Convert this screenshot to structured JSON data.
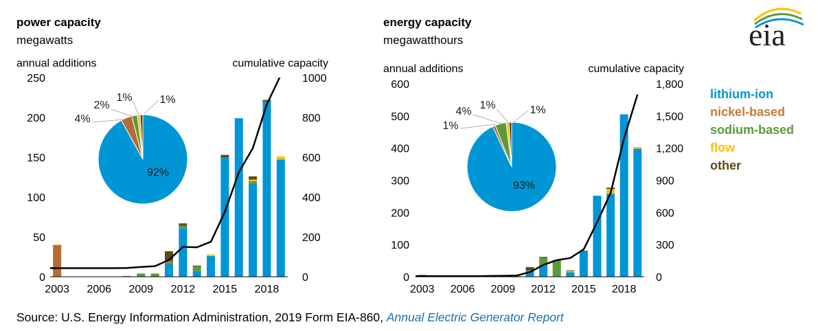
{
  "colors": {
    "lithium-ion": "#0096d6",
    "nickel-based": "#b86b31",
    "sodium-based": "#5b9a3b",
    "flow": "#ffc000",
    "other": "#5e4a16",
    "line": "#000000"
  },
  "legend": [
    {
      "name": "lithium-ion",
      "color": "#0096d6"
    },
    {
      "name": "nickel-based",
      "color": "#c7783a"
    },
    {
      "name": "sodium-based",
      "color": "#5b9a3b"
    },
    {
      "name": "flow",
      "color": "#ffc000"
    },
    {
      "name": "other",
      "color": "#5e4a16"
    }
  ],
  "logo": {
    "text": "eia"
  },
  "source": {
    "prefix": "Source: U.S. Energy Information Administration, 2019 Form EIA-860, ",
    "link": "Annual Electric Generator Report"
  },
  "chart_data": [
    {
      "type": "bar",
      "title": "power capacity",
      "subtitle": "megawatts",
      "ylabel_left": "annual additions",
      "ylabel_right": "cumulative capacity",
      "ylim_left": [
        0,
        250
      ],
      "ylim_right": [
        0,
        1000
      ],
      "yticks_left": [
        "0",
        "50",
        "100",
        "150",
        "200",
        "250"
      ],
      "yticks_right": [
        "0",
        "200",
        "400",
        "600",
        "800",
        "1000"
      ],
      "x": [
        2003,
        2004,
        2005,
        2006,
        2007,
        2008,
        2009,
        2010,
        2011,
        2012,
        2013,
        2014,
        2015,
        2016,
        2017,
        2018,
        2019
      ],
      "xticks": [
        "2003",
        "2006",
        "2009",
        "2012",
        "2015",
        "2018"
      ],
      "stacked": true,
      "series": [
        {
          "name": "lithium-ion",
          "values": [
            0,
            0,
            0,
            0,
            0,
            0,
            0,
            0,
            16,
            61,
            7,
            26,
            150,
            199,
            117,
            220,
            147
          ]
        },
        {
          "name": "nickel-based",
          "values": [
            40,
            0,
            0,
            0,
            0,
            0,
            0,
            0,
            2,
            0,
            0,
            0,
            0,
            0,
            0,
            0,
            0
          ]
        },
        {
          "name": "sodium-based",
          "values": [
            0,
            0,
            0,
            0,
            0,
            1,
            4,
            4,
            2,
            3,
            6,
            0,
            0,
            0,
            3,
            0,
            0
          ]
        },
        {
          "name": "flow",
          "values": [
            0,
            0,
            0,
            0,
            0,
            0,
            0,
            0,
            0,
            0,
            0,
            2,
            0,
            0,
            2,
            0,
            4
          ]
        },
        {
          "name": "other",
          "values": [
            0,
            0,
            0,
            0,
            0,
            0,
            0,
            0,
            12,
            3,
            1,
            0,
            3,
            0,
            4,
            2,
            0
          ]
        }
      ],
      "line": {
        "axis": "right",
        "values": [
          43,
          43,
          43,
          43,
          43,
          44,
          49,
          53,
          85,
          150,
          148,
          176,
          326,
          525,
          646,
          866,
          1012
        ]
      },
      "pie": {
        "segments": [
          {
            "name": "lithium-ion",
            "value": 92
          },
          {
            "name": "nickel-based",
            "value": 4
          },
          {
            "name": "sodium-based",
            "value": 2
          },
          {
            "name": "flow",
            "value": 1
          },
          {
            "name": "other",
            "value": 1
          }
        ],
        "labels": [
          "92%",
          "4%",
          "2%",
          "1%",
          "1%"
        ]
      }
    },
    {
      "type": "bar",
      "title": "energy capacity",
      "subtitle": "megawatthours",
      "ylabel_left": "annual additions",
      "ylabel_right": "cumulative capacity",
      "ylim_left": [
        0,
        600
      ],
      "ylim_right": [
        0,
        1800
      ],
      "yticks_left": [
        "0",
        "100",
        "200",
        "300",
        "400",
        "500",
        "600"
      ],
      "yticks_right": [
        "0",
        "300",
        "600",
        "900",
        "1,200",
        "1,500",
        "1,800"
      ],
      "x": [
        2003,
        2004,
        2005,
        2006,
        2007,
        2008,
        2009,
        2010,
        2011,
        2012,
        2013,
        2014,
        2015,
        2016,
        2017,
        2018,
        2019
      ],
      "xticks": [
        "2003",
        "2006",
        "2009",
        "2012",
        "2015",
        "2018"
      ],
      "stacked": true,
      "series": [
        {
          "name": "lithium-ion",
          "values": [
            0,
            0,
            0,
            0,
            0,
            0,
            0,
            0,
            18,
            36,
            2,
            14,
            80,
            252,
            258,
            505,
            398
          ]
        },
        {
          "name": "nickel-based",
          "values": [
            6,
            0,
            0,
            0,
            0,
            0,
            0,
            0,
            0,
            0,
            0,
            0,
            0,
            0,
            0,
            0,
            0
          ]
        },
        {
          "name": "sodium-based",
          "values": [
            0,
            0,
            0,
            0,
            0,
            0,
            2,
            2,
            2,
            24,
            48,
            0,
            0,
            0,
            0,
            0,
            0
          ]
        },
        {
          "name": "flow",
          "values": [
            0,
            0,
            0,
            0,
            0,
            0,
            0,
            0,
            0,
            0,
            0,
            4,
            0,
            0,
            15,
            0,
            5
          ]
        },
        {
          "name": "other",
          "values": [
            0,
            0,
            0,
            0,
            0,
            0,
            0,
            0,
            10,
            2,
            2,
            2,
            1,
            0,
            4,
            0,
            0
          ]
        }
      ],
      "line": {
        "axis": "right",
        "values": [
          6,
          6,
          6,
          6,
          6,
          7,
          9,
          11,
          43,
          110,
          155,
          175,
          256,
          508,
          780,
          1290,
          1700
        ]
      },
      "pie": {
        "segments": [
          {
            "name": "lithium-ion",
            "value": 93
          },
          {
            "name": "nickel-based",
            "value": 1
          },
          {
            "name": "sodium-based",
            "value": 4
          },
          {
            "name": "flow",
            "value": 1
          },
          {
            "name": "other",
            "value": 1
          }
        ],
        "labels": [
          "93%",
          "1%",
          "4%",
          "1%",
          "1%"
        ]
      }
    }
  ]
}
